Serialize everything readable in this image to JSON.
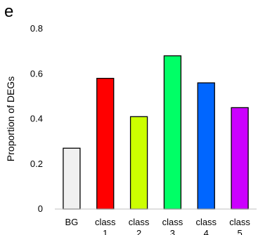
{
  "panel_label": "e",
  "chart_data": {
    "type": "bar",
    "categories": [
      "BG",
      "class\n1",
      "class\n2",
      "class\n3",
      "class\n4",
      "class\n5"
    ],
    "values": [
      0.27,
      0.58,
      0.41,
      0.68,
      0.56,
      0.45
    ],
    "colors": [
      "#f0f0f0",
      "#ff0000",
      "#ccff00",
      "#00ff66",
      "#0066ff",
      "#cc00ff"
    ],
    "ylabel": "Proportion of DEGs",
    "ylim": [
      0,
      0.8
    ],
    "yticks": [
      0,
      0.2,
      0.4,
      0.6,
      0.8
    ],
    "ytick_labels": [
      "0",
      "0.2",
      "0.4",
      "0.6",
      "0.8"
    ],
    "grid": false,
    "legend": "none"
  }
}
